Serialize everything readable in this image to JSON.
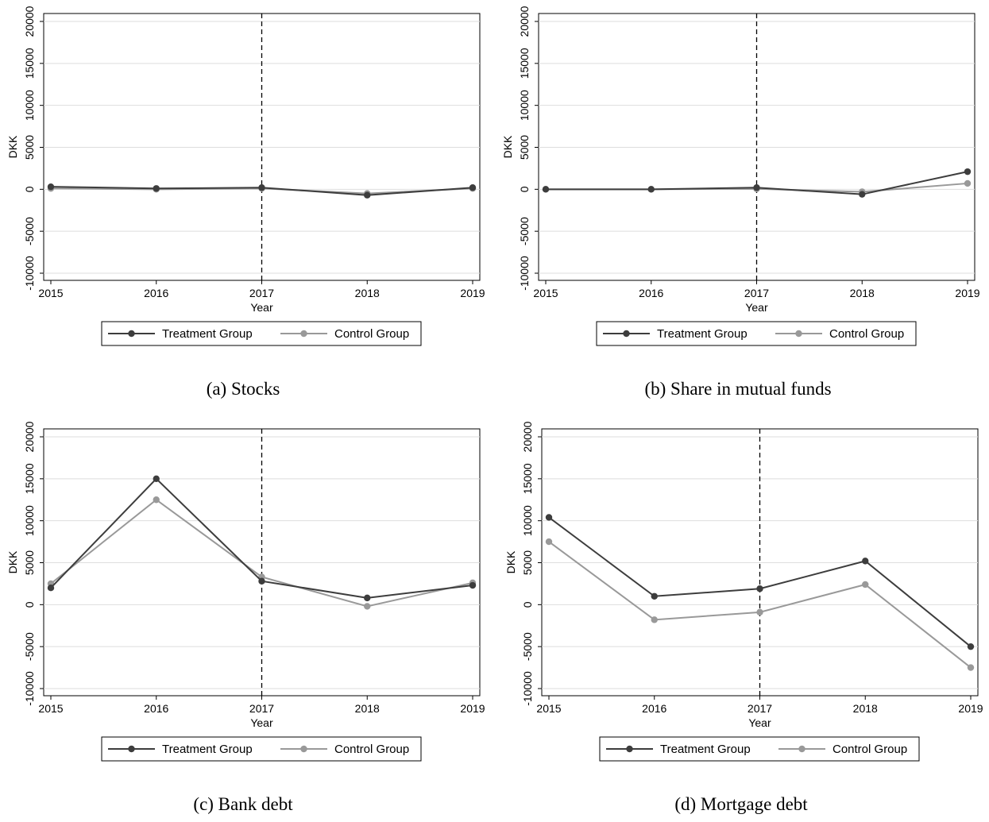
{
  "chart_data": [
    {
      "type": "line",
      "caption": "(a) Stocks",
      "xlabel": "Year",
      "ylabel": "DKK",
      "x": [
        2015,
        2016,
        2017,
        2018,
        2019
      ],
      "ylim": [
        -10000,
        20000
      ],
      "yticks": [
        -10000,
        -5000,
        0,
        5000,
        10000,
        15000,
        20000
      ],
      "vline": 2017,
      "grid": true,
      "legend_position": "bottom",
      "series": [
        {
          "name": "Treatment Group",
          "color": "#3d3d3d",
          "values": [
            300,
            100,
            200,
            -700,
            200
          ]
        },
        {
          "name": "Control Group",
          "color": "#999999",
          "values": [
            100,
            0,
            100,
            -500,
            100
          ]
        }
      ]
    },
    {
      "type": "line",
      "caption": "(b) Share in mutual funds",
      "xlabel": "Year",
      "ylabel": "DKK",
      "x": [
        2015,
        2016,
        2017,
        2018,
        2019
      ],
      "ylim": [
        -10000,
        20000
      ],
      "yticks": [
        -10000,
        -5000,
        0,
        5000,
        10000,
        15000,
        20000
      ],
      "vline": 2017,
      "grid": true,
      "legend_position": "bottom",
      "series": [
        {
          "name": "Treatment Group",
          "color": "#3d3d3d",
          "values": [
            0,
            0,
            200,
            -600,
            2100
          ]
        },
        {
          "name": "Control Group",
          "color": "#999999",
          "values": [
            0,
            0,
            50,
            -300,
            700
          ]
        }
      ]
    },
    {
      "type": "line",
      "caption": "(c) Bank debt",
      "xlabel": "Year",
      "ylabel": "DKK",
      "x": [
        2015,
        2016,
        2017,
        2018,
        2019
      ],
      "ylim": [
        -10000,
        20000
      ],
      "yticks": [
        -10000,
        -5000,
        0,
        5000,
        10000,
        15000,
        20000
      ],
      "vline": 2017,
      "grid": true,
      "legend_position": "bottom",
      "series": [
        {
          "name": "Treatment Group",
          "color": "#3d3d3d",
          "values": [
            2000,
            15000,
            2800,
            800,
            2300
          ]
        },
        {
          "name": "Control Group",
          "color": "#999999",
          "values": [
            2500,
            12500,
            3300,
            -200,
            2600
          ]
        }
      ]
    },
    {
      "type": "line",
      "caption": "(d) Mortgage debt",
      "xlabel": "Year",
      "ylabel": "DKK",
      "x": [
        2015,
        2016,
        2017,
        2018,
        2019
      ],
      "ylim": [
        -10000,
        20000
      ],
      "yticks": [
        -10000,
        -5000,
        0,
        5000,
        10000,
        15000,
        20000
      ],
      "vline": 2017,
      "grid": true,
      "legend_position": "bottom",
      "series": [
        {
          "name": "Treatment Group",
          "color": "#3d3d3d",
          "values": [
            10400,
            1000,
            1900,
            5200,
            -5000
          ]
        },
        {
          "name": "Control Group",
          "color": "#999999",
          "values": [
            7500,
            -1800,
            -900,
            2400,
            -7500
          ]
        }
      ]
    }
  ]
}
